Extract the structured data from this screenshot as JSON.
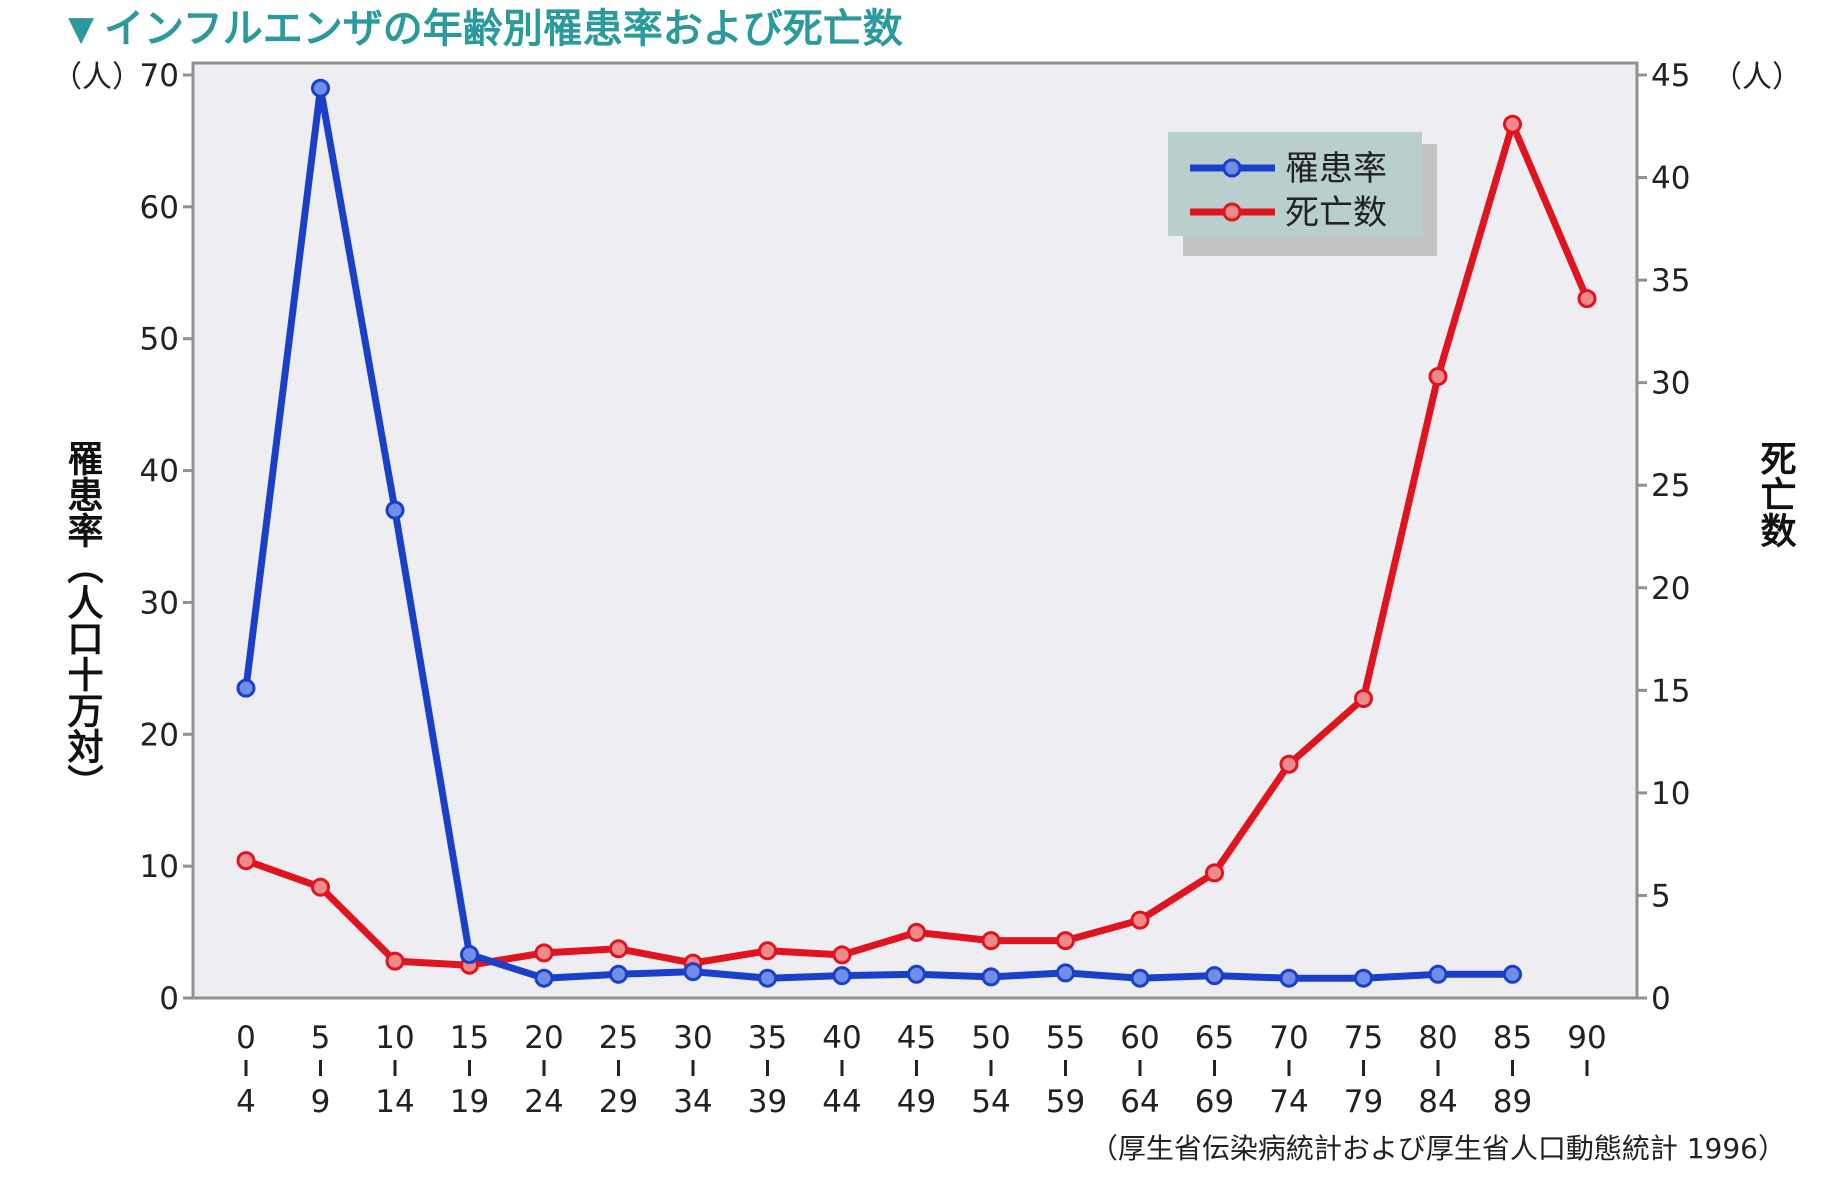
{
  "chart_data": {
    "type": "line",
    "title": "インフルエンザの年齢別罹患率および死亡数",
    "title_marker": "▼",
    "left_axis": {
      "label": "罹患率（人口十万対）",
      "unit": "（人）",
      "range": [
        0,
        70
      ],
      "ticks": [
        "0",
        "10",
        "20",
        "30",
        "40",
        "50",
        "60",
        "70"
      ]
    },
    "right_axis": {
      "label": "死亡数",
      "unit": "（人）",
      "range": [
        0,
        45
      ],
      "ticks": [
        "0",
        "5",
        "10",
        "15",
        "20",
        "25",
        "30",
        "35",
        "40",
        "45"
      ]
    },
    "categories": [
      {
        "top": "0",
        "bottom": "4"
      },
      {
        "top": "5",
        "bottom": "9"
      },
      {
        "top": "10",
        "bottom": "14"
      },
      {
        "top": "15",
        "bottom": "19"
      },
      {
        "top": "20",
        "bottom": "24"
      },
      {
        "top": "25",
        "bottom": "29"
      },
      {
        "top": "30",
        "bottom": "34"
      },
      {
        "top": "35",
        "bottom": "39"
      },
      {
        "top": "40",
        "bottom": "44"
      },
      {
        "top": "45",
        "bottom": "49"
      },
      {
        "top": "50",
        "bottom": "54"
      },
      {
        "top": "55",
        "bottom": "59"
      },
      {
        "top": "60",
        "bottom": "64"
      },
      {
        "top": "65",
        "bottom": "69"
      },
      {
        "top": "70",
        "bottom": "74"
      },
      {
        "top": "75",
        "bottom": "79"
      },
      {
        "top": "80",
        "bottom": "84"
      },
      {
        "top": "85",
        "bottom": "89"
      },
      {
        "top": "90",
        "bottom": ""
      }
    ],
    "series": [
      {
        "name": "罹患率",
        "axis": "left",
        "color": "#1a3fc8",
        "values": [
          23.5,
          69.0,
          37.0,
          3.3,
          1.5,
          1.8,
          2.0,
          1.5,
          1.7,
          1.8,
          1.6,
          1.9,
          1.5,
          1.7,
          1.5,
          1.5,
          1.8,
          1.8,
          null
        ]
      },
      {
        "name": "死亡数",
        "axis": "right",
        "color": "#e0141e",
        "values": [
          6.7,
          5.4,
          1.8,
          1.6,
          2.2,
          2.4,
          1.7,
          2.3,
          2.1,
          3.2,
          2.8,
          2.8,
          3.8,
          6.1,
          11.4,
          14.6,
          30.3,
          42.6,
          34.1
        ]
      }
    ],
    "legend_position": "top-right",
    "grid": false,
    "source": "（厚生省伝染病統計および厚生省人口動態統計 1996）",
    "colors": {
      "title": "#2a9a9c",
      "plot_background": "#ededf2",
      "legend_background": "#b9cfce",
      "legend_shadow": "#c4c4c4",
      "axis": "#909090"
    }
  }
}
